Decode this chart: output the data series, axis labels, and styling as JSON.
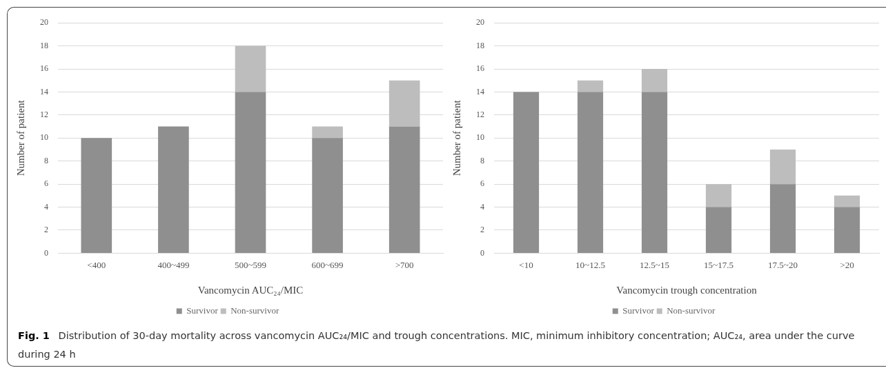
{
  "chart_data": [
    {
      "type": "bar",
      "stacked": true,
      "categories": [
        "<400",
        "400~499",
        "500~599",
        "600~699",
        ">700"
      ],
      "series": [
        {
          "name": "Survivor",
          "color": "#8f8f8f",
          "values": [
            10,
            11,
            14,
            10,
            11
          ]
        },
        {
          "name": "Non-survivor",
          "color": "#bdbdbd",
          "values": [
            0,
            0,
            4,
            1,
            4
          ]
        }
      ],
      "xlabel": "Vancomycin AUC₂₄/MIC",
      "ylabel": "Number of patient",
      "ylim": [
        0,
        20
      ],
      "yticks": [
        0,
        2,
        4,
        6,
        8,
        10,
        12,
        14,
        16,
        18,
        20
      ],
      "grid": "y",
      "legend": "bottom",
      "annotations": [
        "Fig. 1",
        "Distribution of 30-day mortality across vancomycin AUC₂₄/MIC and trough concentrations. MIC, minimum inhibitory concentration; AUC₂₄, area under the curve during 24 h"
      ]
    },
    {
      "type": "bar",
      "stacked": true,
      "categories": [
        "<10",
        "10~12.5",
        "12.5~15",
        "15~17.5",
        "17.5~20",
        ">20"
      ],
      "series": [
        {
          "name": "Survivor",
          "color": "#8f8f8f",
          "values": [
            14,
            14,
            14,
            4,
            6,
            4
          ]
        },
        {
          "name": "Non-survivor",
          "color": "#bdbdbd",
          "values": [
            0,
            1,
            2,
            2,
            3,
            1
          ]
        }
      ],
      "xlabel": "Vancomycin trough concentration",
      "ylabel": "Number of patient",
      "ylim": [
        0,
        20
      ],
      "yticks": [
        0,
        2,
        4,
        6,
        8,
        10,
        12,
        14,
        16,
        18,
        20
      ],
      "grid": "y",
      "legend": "bottom"
    }
  ]
}
